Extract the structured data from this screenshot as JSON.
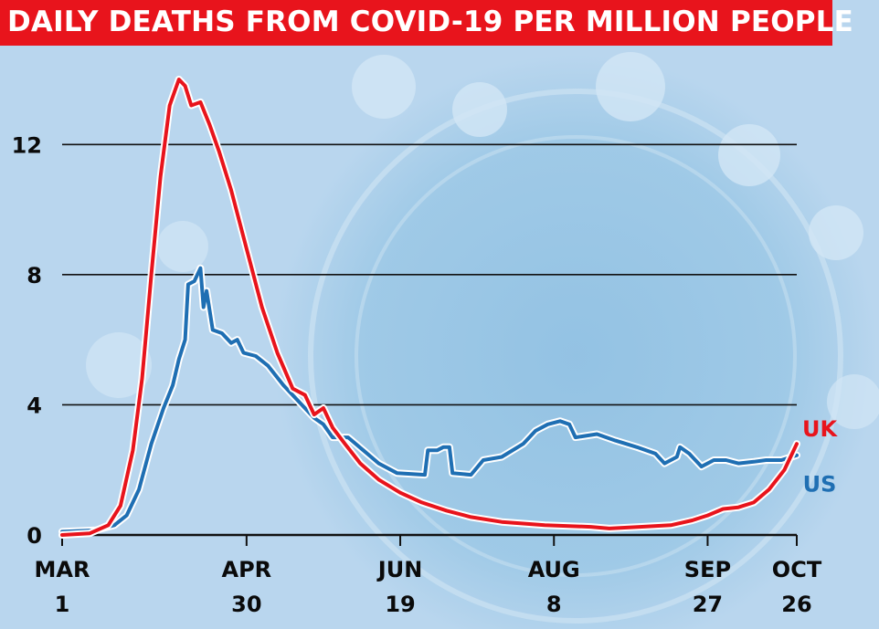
{
  "title": "DAILY DEATHS FROM COVID-19 PER MILLION PEOPLE",
  "colors": {
    "title_bg": "#e8141c",
    "uk": "#e8141c",
    "us": "#1f6fb3",
    "background": "#b9d6ee"
  },
  "chart_data": {
    "type": "line",
    "title": "DAILY DEATHS FROM COVID-19 PER MILLION PEOPLE",
    "xlabel": "",
    "ylabel": "",
    "ylim": [
      0,
      14
    ],
    "xlim": [
      "2020-03-01",
      "2020-10-26"
    ],
    "grid": true,
    "yticks": [
      0,
      4,
      8,
      12
    ],
    "xticks": [
      {
        "date": "2020-03-01",
        "line1": "MAR",
        "line2": "1"
      },
      {
        "date": "2020-04-30",
        "line1": "APR",
        "line2": "30"
      },
      {
        "date": "2020-06-19",
        "line1": "JUN",
        "line2": "19"
      },
      {
        "date": "2020-08-08",
        "line1": "AUG",
        "line2": "8"
      },
      {
        "date": "2020-09-27",
        "line1": "SEP",
        "line2": "27"
      },
      {
        "date": "2020-10-26",
        "line1": "OCT",
        "line2": "26"
      }
    ],
    "series": [
      {
        "name": "UK",
        "points": [
          [
            "2020-03-01",
            0.0
          ],
          [
            "2020-03-10",
            0.05
          ],
          [
            "2020-03-16",
            0.3
          ],
          [
            "2020-03-20",
            0.9
          ],
          [
            "2020-03-24",
            2.6
          ],
          [
            "2020-03-27",
            4.8
          ],
          [
            "2020-03-30",
            8.0
          ],
          [
            "2020-04-02",
            11.0
          ],
          [
            "2020-04-05",
            13.2
          ],
          [
            "2020-04-08",
            14.0
          ],
          [
            "2020-04-10",
            13.8
          ],
          [
            "2020-04-12",
            13.2
          ],
          [
            "2020-04-15",
            13.3
          ],
          [
            "2020-04-18",
            12.6
          ],
          [
            "2020-04-21",
            11.8
          ],
          [
            "2020-04-25",
            10.6
          ],
          [
            "2020-04-30",
            8.8
          ],
          [
            "2020-05-05",
            7.0
          ],
          [
            "2020-05-10",
            5.6
          ],
          [
            "2020-05-15",
            4.5
          ],
          [
            "2020-05-19",
            4.3
          ],
          [
            "2020-05-22",
            3.7
          ],
          [
            "2020-05-25",
            3.9
          ],
          [
            "2020-05-28",
            3.3
          ],
          [
            "2020-06-01",
            2.8
          ],
          [
            "2020-06-06",
            2.2
          ],
          [
            "2020-06-12",
            1.7
          ],
          [
            "2020-06-19",
            1.3
          ],
          [
            "2020-06-26",
            1.0
          ],
          [
            "2020-07-04",
            0.75
          ],
          [
            "2020-07-12",
            0.55
          ],
          [
            "2020-07-22",
            0.4
          ],
          [
            "2020-08-05",
            0.3
          ],
          [
            "2020-08-20",
            0.25
          ],
          [
            "2020-08-26",
            0.2
          ],
          [
            "2020-09-05",
            0.25
          ],
          [
            "2020-09-15",
            0.3
          ],
          [
            "2020-09-22",
            0.45
          ],
          [
            "2020-09-27",
            0.6
          ],
          [
            "2020-10-02",
            0.8
          ],
          [
            "2020-10-07",
            0.85
          ],
          [
            "2020-10-12",
            1.0
          ],
          [
            "2020-10-17",
            1.4
          ],
          [
            "2020-10-22",
            2.0
          ],
          [
            "2020-10-26",
            2.8
          ]
        ]
      },
      {
        "name": "US",
        "points": [
          [
            "2020-03-01",
            0.1
          ],
          [
            "2020-03-12",
            0.15
          ],
          [
            "2020-03-18",
            0.3
          ],
          [
            "2020-03-22",
            0.6
          ],
          [
            "2020-03-26",
            1.4
          ],
          [
            "2020-03-30",
            2.8
          ],
          [
            "2020-04-03",
            3.9
          ],
          [
            "2020-04-06",
            4.6
          ],
          [
            "2020-04-08",
            5.4
          ],
          [
            "2020-04-10",
            6.0
          ],
          [
            "2020-04-11",
            7.7
          ],
          [
            "2020-04-13",
            7.8
          ],
          [
            "2020-04-15",
            8.2
          ],
          [
            "2020-04-16",
            7.0
          ],
          [
            "2020-04-17",
            7.5
          ],
          [
            "2020-04-19",
            6.3
          ],
          [
            "2020-04-22",
            6.2
          ],
          [
            "2020-04-25",
            5.9
          ],
          [
            "2020-04-27",
            6.0
          ],
          [
            "2020-04-29",
            5.6
          ],
          [
            "2020-05-03",
            5.5
          ],
          [
            "2020-05-07",
            5.2
          ],
          [
            "2020-05-12",
            4.6
          ],
          [
            "2020-05-17",
            4.1
          ],
          [
            "2020-05-22",
            3.6
          ],
          [
            "2020-05-25",
            3.4
          ],
          [
            "2020-05-28",
            3.0
          ],
          [
            "2020-06-02",
            3.0
          ],
          [
            "2020-06-07",
            2.6
          ],
          [
            "2020-06-12",
            2.2
          ],
          [
            "2020-06-18",
            1.9
          ],
          [
            "2020-06-27",
            1.85
          ],
          [
            "2020-06-28",
            2.6
          ],
          [
            "2020-07-01",
            2.6
          ],
          [
            "2020-07-03",
            2.7
          ],
          [
            "2020-07-05",
            2.7
          ],
          [
            "2020-07-06",
            1.9
          ],
          [
            "2020-07-12",
            1.85
          ],
          [
            "2020-07-16",
            2.3
          ],
          [
            "2020-07-22",
            2.4
          ],
          [
            "2020-07-29",
            2.8
          ],
          [
            "2020-08-02",
            3.2
          ],
          [
            "2020-08-06",
            3.4
          ],
          [
            "2020-08-10",
            3.5
          ],
          [
            "2020-08-13",
            3.4
          ],
          [
            "2020-08-15",
            3.0
          ],
          [
            "2020-08-22",
            3.1
          ],
          [
            "2020-08-28",
            2.9
          ],
          [
            "2020-09-04",
            2.7
          ],
          [
            "2020-09-10",
            2.5
          ],
          [
            "2020-09-13",
            2.2
          ],
          [
            "2020-09-17",
            2.4
          ],
          [
            "2020-09-18",
            2.7
          ],
          [
            "2020-09-21",
            2.5
          ],
          [
            "2020-09-25",
            2.1
          ],
          [
            "2020-09-29",
            2.3
          ],
          [
            "2020-10-03",
            2.3
          ],
          [
            "2020-10-07",
            2.2
          ],
          [
            "2020-10-12",
            2.25
          ],
          [
            "2020-10-16",
            2.3
          ],
          [
            "2020-10-21",
            2.3
          ],
          [
            "2020-10-26",
            2.45
          ]
        ]
      }
    ]
  }
}
